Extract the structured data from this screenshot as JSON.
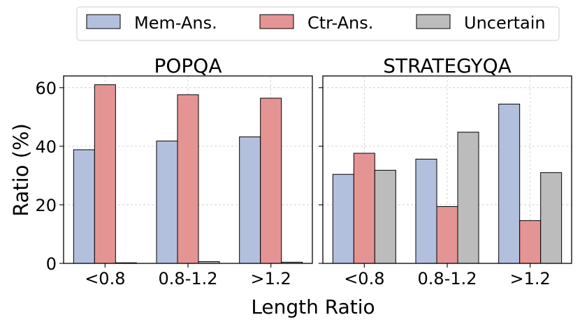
{
  "chart_data": {
    "type": "bar",
    "xlabel": "Length Ratio",
    "ylabel": "Ratio (%)",
    "ylim": [
      0,
      64
    ],
    "yticks": [
      0,
      20,
      40,
      60
    ],
    "categories": [
      "<0.8",
      "0.8-1.2",
      ">1.2"
    ],
    "legend": {
      "placement": "top",
      "entries": [
        {
          "name": "Mem-Ans.",
          "color": "#b3c0dd"
        },
        {
          "name": "Ctr-Ans.",
          "color": "#e59494"
        },
        {
          "name": "Uncertain",
          "color": "#bcbcbc"
        }
      ]
    },
    "panels": [
      {
        "title": "POPQA",
        "series": [
          {
            "name": "Mem-Ans.",
            "values": [
              38.8,
              41.8,
              43.2
            ]
          },
          {
            "name": "Ctr-Ans.",
            "values": [
              61.0,
              57.6,
              56.4
            ]
          },
          {
            "name": "Uncertain",
            "values": [
              0.2,
              0.6,
              0.4
            ]
          }
        ]
      },
      {
        "title": "STRATEGYQA",
        "series": [
          {
            "name": "Mem-Ans.",
            "values": [
              30.4,
              35.6,
              54.4
            ]
          },
          {
            "name": "Ctr-Ans.",
            "values": [
              37.6,
              19.4,
              14.6
            ]
          },
          {
            "name": "Uncertain",
            "values": [
              31.8,
              44.8,
              31.0
            ]
          }
        ]
      }
    ]
  }
}
